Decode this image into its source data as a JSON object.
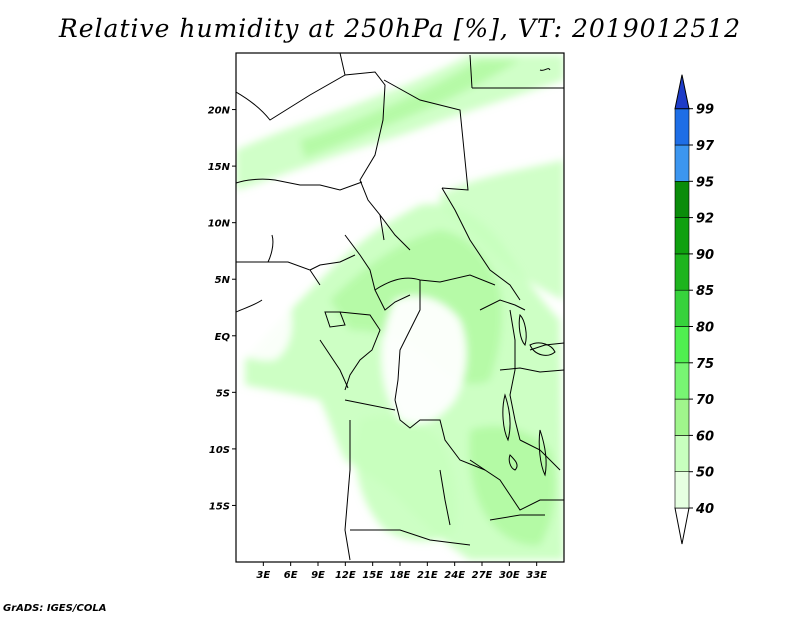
{
  "title": "Relative humidity at 250hPa [%], VT: 2019012512",
  "credit": "GrADS: IGES/COLA",
  "map": {
    "lon_range": [
      0,
      36
    ],
    "lat_range": [
      -20,
      25
    ],
    "lat_ticks": [
      {
        "value": 20,
        "label": "20N"
      },
      {
        "value": 15,
        "label": "15N"
      },
      {
        "value": 10,
        "label": "10N"
      },
      {
        "value": 5,
        "label": "5N"
      },
      {
        "value": 0,
        "label": "EQ"
      },
      {
        "value": -5,
        "label": "5S"
      },
      {
        "value": -10,
        "label": "10S"
      },
      {
        "value": -15,
        "label": "15S"
      }
    ],
    "lon_ticks": [
      {
        "value": 3,
        "label": "3E"
      },
      {
        "value": 6,
        "label": "6E"
      },
      {
        "value": 9,
        "label": "9E"
      },
      {
        "value": 12,
        "label": "12E"
      },
      {
        "value": 15,
        "label": "15E"
      },
      {
        "value": 18,
        "label": "18E"
      },
      {
        "value": 21,
        "label": "21E"
      },
      {
        "value": 24,
        "label": "24E"
      },
      {
        "value": 27,
        "label": "27E"
      },
      {
        "value": 30,
        "label": "30E"
      },
      {
        "value": 33,
        "label": "33E"
      }
    ]
  },
  "colorbar": {
    "levels": [
      "40",
      "50",
      "60",
      "70",
      "75",
      "80",
      "85",
      "90",
      "92",
      "95",
      "97",
      "99"
    ],
    "colors": [
      "#ffffff",
      "#e6ffe1",
      "#c8ffbe",
      "#a0f58c",
      "#78f573",
      "#50f050",
      "#37d23c",
      "#1eb41e",
      "#0fa00f",
      "#0a8c0a",
      "#3c96f0",
      "#1e6ee6",
      "#1e3cc8"
    ]
  }
}
